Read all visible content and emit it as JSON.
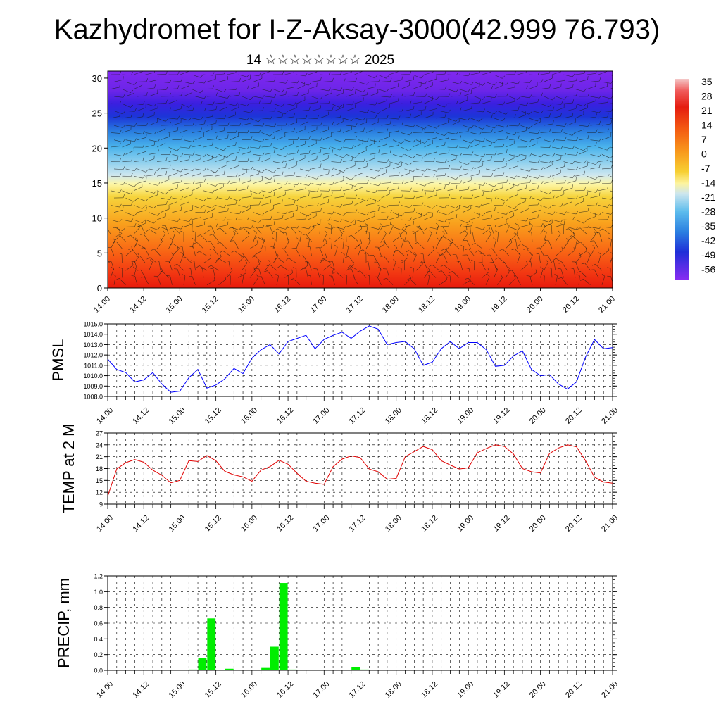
{
  "title": "Kazhydromet for I-Z-Aksay-3000(42.999 76.793)",
  "subtitle": "14 ☆☆☆☆☆☆☆☆ 2025",
  "time_labels": [
    "14.00",
    "14.12",
    "15.00",
    "15.12",
    "16.00",
    "16.12",
    "17.00",
    "17.12",
    "18.00",
    "18.12",
    "19.00",
    "19.12",
    "20.00",
    "20.12",
    "21.00"
  ],
  "colors": {
    "pmsl_line": "#0000ff",
    "temp_line": "#e00000",
    "precip_bar": "#00ee00"
  },
  "chart_data": [
    {
      "type": "heatmap",
      "description_axis": "height",
      "ylim": [
        0,
        31
      ],
      "yticks": [
        "0",
        "5",
        "10",
        "15",
        "20",
        "25",
        "30"
      ],
      "colorbar_labels": [
        "35",
        "28",
        "21",
        "14",
        "7",
        "0",
        "-7",
        "-14",
        "-21",
        "-28",
        "-35",
        "-42",
        "-49",
        "-56"
      ],
      "temperature_by_height": {
        "heights": [
          0,
          5,
          10,
          15,
          20,
          25,
          30
        ],
        "values": [
          24,
          10,
          -2,
          -12,
          -28,
          -50,
          -60
        ]
      },
      "wind_barbs": true
    },
    {
      "type": "line",
      "ylabel": "PMSL",
      "ylim": [
        1008,
        1015
      ],
      "yticks": [
        "1008.0",
        "1009.0",
        "1010.0",
        "1011.0",
        "1012.0",
        "1013.0",
        "1014.0",
        "1015.0"
      ],
      "x_hours": [
        0,
        3,
        6,
        9,
        12,
        15,
        18,
        21,
        24,
        27,
        30,
        33,
        36,
        39,
        42,
        45,
        48,
        51,
        54,
        57,
        60,
        63,
        66,
        69,
        72,
        75,
        78,
        81,
        84,
        87,
        90,
        93,
        96,
        99,
        102,
        105,
        108,
        111,
        114,
        117,
        120,
        123,
        126,
        129,
        132,
        135,
        138,
        141,
        144,
        147,
        150,
        153,
        156,
        159,
        162,
        165,
        168
      ],
      "values": [
        1011.6,
        1010.6,
        1010.3,
        1009.4,
        1009.6,
        1010.3,
        1009.2,
        1008.4,
        1008.5,
        1009.8,
        1010.6,
        1008.8,
        1009.1,
        1009.7,
        1010.7,
        1010.2,
        1011.7,
        1012.5,
        1013.0,
        1012.1,
        1013.3,
        1013.6,
        1013.9,
        1012.6,
        1013.5,
        1013.9,
        1014.2,
        1013.6,
        1014.3,
        1014.8,
        1014.5,
        1013.0,
        1013.2,
        1013.3,
        1012.6,
        1011.0,
        1011.3,
        1012.6,
        1013.3,
        1012.6,
        1013.2,
        1013.2,
        1012.5,
        1010.9,
        1011.0,
        1011.9,
        1012.4,
        1010.6,
        1010.0,
        1010.1,
        1009.2,
        1008.7,
        1009.4,
        1011.8,
        1013.5,
        1012.6,
        1012.7
      ]
    },
    {
      "type": "line",
      "ylabel": "TEMP at 2 M",
      "ylim": [
        9,
        27
      ],
      "yticks": [
        "9",
        "12",
        "15",
        "18",
        "21",
        "24",
        "27"
      ],
      "x_hours": [
        0,
        3,
        6,
        9,
        12,
        15,
        18,
        21,
        24,
        27,
        30,
        33,
        36,
        39,
        42,
        45,
        48,
        51,
        54,
        57,
        60,
        63,
        66,
        69,
        72,
        75,
        78,
        81,
        84,
        87,
        90,
        93,
        96,
        99,
        102,
        105,
        108,
        111,
        114,
        117,
        120,
        123,
        126,
        129,
        132,
        135,
        138,
        141,
        144,
        147,
        150,
        153,
        156,
        159,
        162,
        165,
        168
      ],
      "values": [
        11.0,
        17.9,
        19.5,
        20.3,
        19.6,
        17.6,
        16.3,
        14.4,
        15.0,
        20.0,
        19.8,
        21.3,
        20.0,
        17.3,
        16.4,
        15.9,
        14.8,
        17.6,
        18.5,
        20.1,
        19.1,
        16.8,
        14.8,
        14.3,
        14.0,
        18.5,
        20.4,
        21.2,
        20.8,
        17.9,
        17.2,
        15.3,
        15.5,
        21.0,
        22.3,
        23.6,
        22.8,
        20.0,
        18.9,
        17.9,
        18.2,
        22.0,
        23.1,
        24.0,
        23.6,
        21.7,
        18.0,
        17.2,
        16.9,
        21.8,
        23.2,
        24.0,
        23.5,
        20.0,
        15.8,
        14.6,
        14.3
      ]
    },
    {
      "type": "bar",
      "ylabel": "PRECIP, mm",
      "ylim": [
        0,
        1.2
      ],
      "yticks": [
        "0.0",
        "0.2",
        "0.4",
        "0.6",
        "0.8",
        "1.0",
        "1.2"
      ],
      "x_hours": [
        0,
        3,
        6,
        9,
        12,
        15,
        18,
        21,
        24,
        27,
        30,
        33,
        36,
        39,
        42,
        45,
        48,
        51,
        54,
        57,
        60,
        63,
        66,
        69,
        72,
        75,
        78,
        81,
        84,
        87,
        90,
        93,
        96,
        99,
        102,
        105,
        108,
        111,
        114,
        117,
        120,
        123,
        126,
        129,
        132,
        135,
        138,
        141,
        144,
        147,
        150,
        153,
        156,
        159,
        162,
        165
      ],
      "values": [
        0,
        0,
        0,
        0,
        0,
        0,
        0,
        0,
        0,
        0.01,
        0.16,
        0.66,
        0,
        0.02,
        0,
        0,
        0,
        0.03,
        0.3,
        1.11,
        0.01,
        0,
        0,
        0,
        0,
        0,
        0,
        0.04,
        0.01,
        0,
        0,
        0,
        0,
        0,
        0,
        0,
        0,
        0,
        0,
        0,
        0,
        0,
        0,
        0,
        0,
        0,
        0,
        0,
        0,
        0,
        0,
        0,
        0,
        0,
        0,
        0
      ]
    }
  ]
}
